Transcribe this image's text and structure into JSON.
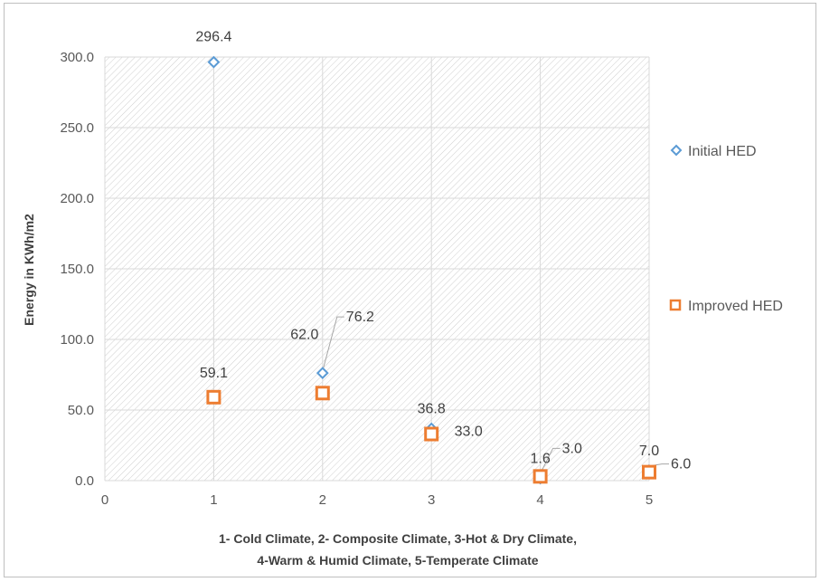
{
  "chart_data": {
    "type": "scatter",
    "title": "",
    "xlabel_lines": [
      "1- Cold Climate, 2- Composite Climate, 3-Hot & Dry Climate,",
      "4-Warm & Humid Climate, 5-Temperate Climate"
    ],
    "ylabel": "Energy in KWh/m2",
    "xlim": [
      0,
      5
    ],
    "ylim": [
      0,
      300
    ],
    "x_ticks": [
      "0",
      "1",
      "2",
      "3",
      "4",
      "5"
    ],
    "y_ticks": [
      "0.0",
      "50.0",
      "100.0",
      "150.0",
      "200.0",
      "250.0",
      "300.0"
    ],
    "grid": "major gridlines on both axes, hatched plot background",
    "legend_position": "right",
    "series": [
      {
        "name": "Initial HED",
        "marker": "diamond",
        "color": "#5b9bd5",
        "points": [
          {
            "x": 1,
            "y": 296.4,
            "label": "296.4"
          },
          {
            "x": 2,
            "y": 76.2,
            "label": "76.2"
          },
          {
            "x": 3,
            "y": 36.8,
            "label": "36.8"
          },
          {
            "x": 4,
            "y": 1.6,
            "label": "1.6"
          },
          {
            "x": 5,
            "y": 7.0,
            "label": "7.0"
          }
        ]
      },
      {
        "name": "Improved HED",
        "marker": "square",
        "color": "#ed7d31",
        "points": [
          {
            "x": 1,
            "y": 59.1,
            "label": "59.1"
          },
          {
            "x": 2,
            "y": 62.0,
            "label": "62.0"
          },
          {
            "x": 3,
            "y": 33.0,
            "label": "33.0"
          },
          {
            "x": 4,
            "y": 3.0,
            "label": "3.0"
          },
          {
            "x": 5,
            "y": 6.0,
            "label": "6.0"
          }
        ]
      }
    ]
  }
}
